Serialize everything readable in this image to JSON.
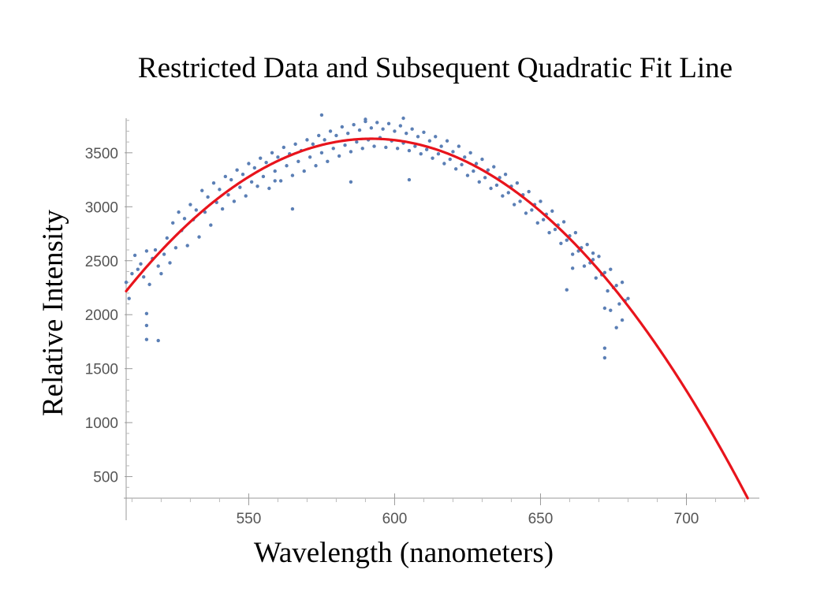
{
  "chart_data": {
    "type": "scatter",
    "title": "Restricted Data and Subsequent Quadratic Fit Line",
    "xlabel": "Wavelength (nanometers)",
    "ylabel": "Relative Intensity",
    "xlim": [
      508,
      725
    ],
    "ylim": [
      300,
      3820
    ],
    "x_ticks": [
      550,
      600,
      650,
      700
    ],
    "x_tick_labels": [
      "550",
      "600",
      "650",
      "700"
    ],
    "y_ticks": [
      500,
      1000,
      1500,
      2000,
      2500,
      3000,
      3500
    ],
    "y_tick_labels": [
      "500",
      "1000",
      "1500",
      "2000",
      "2500",
      "3000",
      "3500"
    ],
    "grid": false,
    "colors": {
      "points": "#5b7fb5",
      "fit_line": "#e8141c"
    },
    "series": [
      {
        "type": "scatter",
        "points": [
          [
            508,
            2300
          ],
          [
            509,
            2150
          ],
          [
            510,
            2380
          ],
          [
            511,
            2550
          ],
          [
            512,
            2420
          ],
          [
            513,
            2470
          ],
          [
            514,
            2350
          ],
          [
            515,
            2590
          ],
          [
            516,
            2280
          ],
          [
            517,
            2520
          ],
          [
            518,
            2600
          ],
          [
            519,
            2450
          ],
          [
            520,
            2380
          ],
          [
            521,
            2560
          ],
          [
            522,
            2710
          ],
          [
            523,
            2480
          ],
          [
            524,
            2850
          ],
          [
            525,
            2620
          ],
          [
            526,
            2950
          ],
          [
            527,
            2780
          ],
          [
            528,
            2890
          ],
          [
            529,
            2640
          ],
          [
            530,
            3020
          ],
          [
            531,
            2880
          ],
          [
            532,
            2970
          ],
          [
            533,
            2720
          ],
          [
            534,
            3150
          ],
          [
            535,
            2950
          ],
          [
            536,
            3090
          ],
          [
            537,
            2830
          ],
          [
            538,
            3220
          ],
          [
            539,
            3040
          ],
          [
            540,
            3160
          ],
          [
            541,
            2980
          ],
          [
            542,
            3280
          ],
          [
            543,
            3110
          ],
          [
            544,
            3250
          ],
          [
            545,
            3050
          ],
          [
            546,
            3340
          ],
          [
            547,
            3180
          ],
          [
            548,
            3300
          ],
          [
            549,
            3100
          ],
          [
            550,
            3400
          ],
          [
            551,
            3230
          ],
          [
            552,
            3360
          ],
          [
            553,
            3190
          ],
          [
            554,
            3450
          ],
          [
            555,
            3280
          ],
          [
            556,
            3410
          ],
          [
            557,
            3170
          ],
          [
            558,
            3500
          ],
          [
            559,
            3330
          ],
          [
            560,
            3460
          ],
          [
            561,
            3240
          ],
          [
            562,
            3550
          ],
          [
            563,
            3380
          ],
          [
            564,
            3490
          ],
          [
            565,
            3290
          ],
          [
            566,
            3580
          ],
          [
            567,
            3420
          ],
          [
            568,
            3520
          ],
          [
            569,
            3330
          ],
          [
            570,
            3620
          ],
          [
            571,
            3460
          ],
          [
            572,
            3580
          ],
          [
            573,
            3380
          ],
          [
            574,
            3660
          ],
          [
            575,
            3500
          ],
          [
            576,
            3620
          ],
          [
            577,
            3420
          ],
          [
            578,
            3700
          ],
          [
            579,
            3540
          ],
          [
            580,
            3660
          ],
          [
            581,
            3470
          ],
          [
            582,
            3740
          ],
          [
            583,
            3570
          ],
          [
            584,
            3680
          ],
          [
            585,
            3510
          ],
          [
            586,
            3760
          ],
          [
            587,
            3600
          ],
          [
            588,
            3710
          ],
          [
            589,
            3540
          ],
          [
            590,
            3790
          ],
          [
            591,
            3620
          ],
          [
            592,
            3730
          ],
          [
            593,
            3560
          ],
          [
            594,
            3780
          ],
          [
            595,
            3640
          ],
          [
            596,
            3720
          ],
          [
            597,
            3550
          ],
          [
            598,
            3770
          ],
          [
            599,
            3610
          ],
          [
            600,
            3700
          ],
          [
            601,
            3540
          ],
          [
            602,
            3750
          ],
          [
            603,
            3590
          ],
          [
            604,
            3680
          ],
          [
            605,
            3520
          ],
          [
            606,
            3720
          ],
          [
            607,
            3560
          ],
          [
            608,
            3650
          ],
          [
            609,
            3490
          ],
          [
            610,
            3690
          ],
          [
            611,
            3530
          ],
          [
            612,
            3610
          ],
          [
            613,
            3450
          ],
          [
            614,
            3650
          ],
          [
            615,
            3490
          ],
          [
            616,
            3560
          ],
          [
            617,
            3400
          ],
          [
            618,
            3610
          ],
          [
            619,
            3440
          ],
          [
            620,
            3510
          ],
          [
            621,
            3350
          ],
          [
            622,
            3560
          ],
          [
            623,
            3390
          ],
          [
            624,
            3460
          ],
          [
            625,
            3290
          ],
          [
            626,
            3500
          ],
          [
            627,
            3330
          ],
          [
            628,
            3400
          ],
          [
            629,
            3230
          ],
          [
            630,
            3440
          ],
          [
            631,
            3270
          ],
          [
            632,
            3340
          ],
          [
            633,
            3170
          ],
          [
            634,
            3370
          ],
          [
            635,
            3200
          ],
          [
            636,
            3270
          ],
          [
            637,
            3100
          ],
          [
            638,
            3300
          ],
          [
            639,
            3130
          ],
          [
            640,
            3190
          ],
          [
            641,
            3020
          ],
          [
            642,
            3220
          ],
          [
            643,
            3050
          ],
          [
            644,
            3110
          ],
          [
            645,
            2940
          ],
          [
            646,
            3140
          ],
          [
            647,
            2970
          ],
          [
            648,
            3020
          ],
          [
            649,
            2850
          ],
          [
            650,
            3050
          ],
          [
            651,
            2880
          ],
          [
            652,
            2930
          ],
          [
            653,
            2760
          ],
          [
            654,
            2960
          ],
          [
            655,
            2790
          ],
          [
            656,
            2830
          ],
          [
            657,
            2660
          ],
          [
            658,
            2860
          ],
          [
            659,
            2690
          ],
          [
            660,
            2730
          ],
          [
            661,
            2560
          ],
          [
            662,
            2760
          ],
          [
            663,
            2590
          ],
          [
            664,
            2620
          ],
          [
            665,
            2450
          ],
          [
            666,
            2650
          ],
          [
            667,
            2480
          ],
          [
            668,
            2510
          ],
          [
            669,
            2340
          ],
          [
            670,
            2540
          ],
          [
            671,
            2370
          ],
          [
            672,
            2390
          ],
          [
            673,
            2220
          ],
          [
            674,
            2420
          ],
          [
            675,
            2250
          ],
          [
            676,
            2270
          ],
          [
            677,
            2100
          ],
          [
            678,
            2300
          ],
          [
            679,
            2130
          ],
          [
            680,
            2150
          ],
          [
            515,
            2010
          ],
          [
            515,
            1770
          ],
          [
            519,
            1760
          ],
          [
            515,
            1900
          ],
          [
            661,
            2430
          ],
          [
            659,
            2230
          ],
          [
            672,
            1600
          ],
          [
            672,
            1690
          ],
          [
            676,
            1880
          ],
          [
            678,
            1950
          ],
          [
            575,
            3850
          ],
          [
            590,
            3810
          ],
          [
            603,
            3820
          ],
          [
            585,
            3230
          ],
          [
            605,
            3250
          ],
          [
            559,
            3240
          ],
          [
            565,
            2980
          ],
          [
            672,
            2060
          ],
          [
            674,
            2040
          ],
          [
            668,
            2570
          ]
        ]
      },
      {
        "type": "line",
        "fit": "quadratic",
        "vertex": [
          592,
          3630
        ],
        "points": [
          [
            508,
            2240
          ],
          [
            520,
            2530
          ],
          [
            530,
            2870
          ],
          [
            540,
            3130
          ],
          [
            550,
            3340
          ],
          [
            560,
            3490
          ],
          [
            570,
            3580
          ],
          [
            580,
            3620
          ],
          [
            592,
            3630
          ],
          [
            600,
            3620
          ],
          [
            610,
            3570
          ],
          [
            620,
            3480
          ],
          [
            630,
            3360
          ],
          [
            640,
            3200
          ],
          [
            650,
            3000
          ],
          [
            660,
            2760
          ],
          [
            670,
            2480
          ],
          [
            680,
            2160
          ],
          [
            690,
            1800
          ],
          [
            700,
            1400
          ],
          [
            710,
            960
          ],
          [
            721,
            300
          ]
        ]
      }
    ]
  }
}
